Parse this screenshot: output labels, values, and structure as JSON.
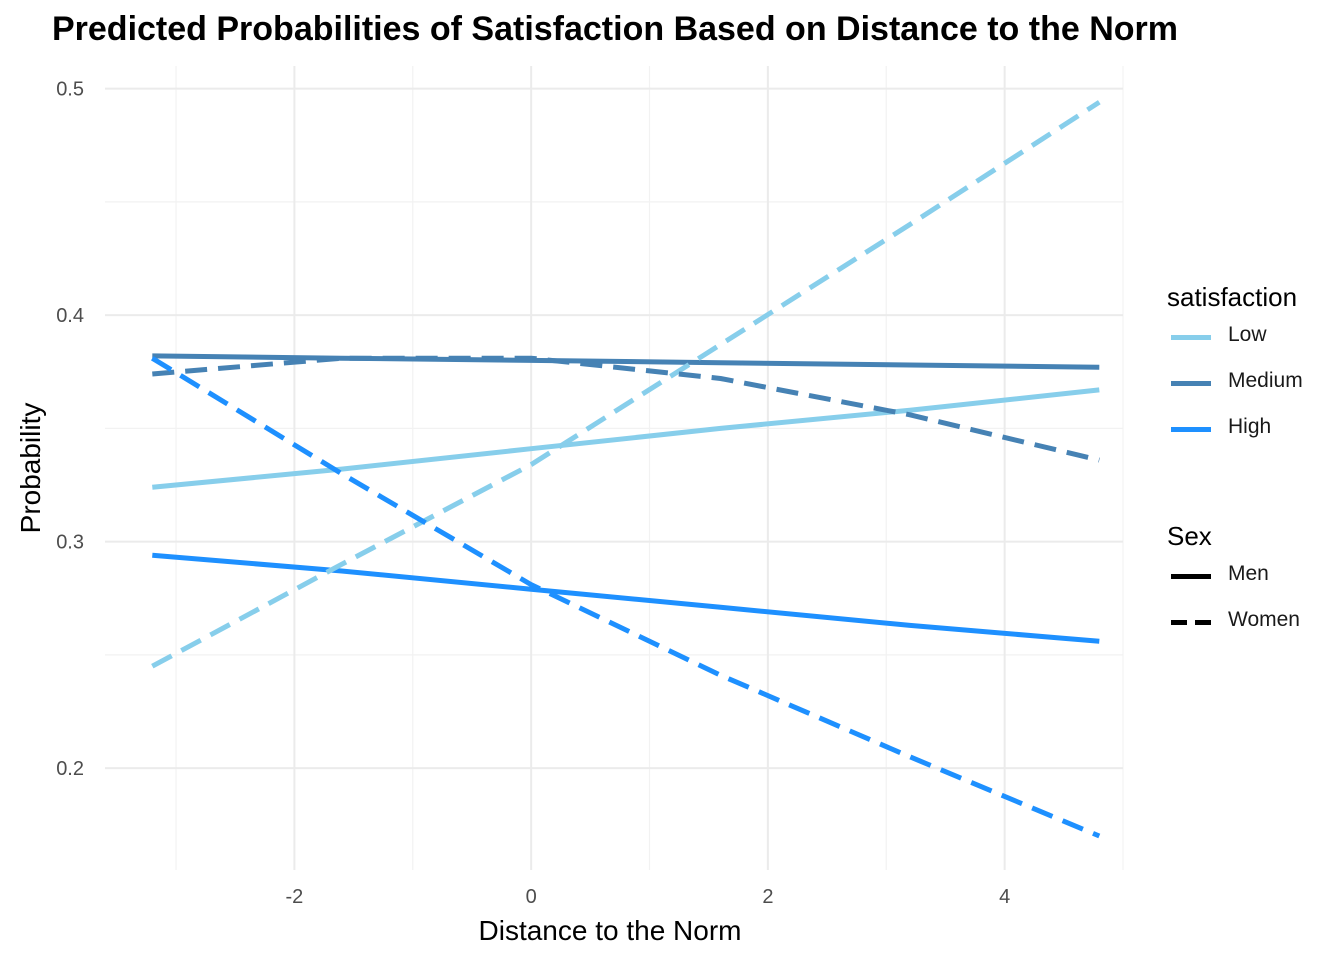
{
  "chart_data": {
    "type": "line",
    "title": "Predicted Probabilities of Satisfaction Based on Distance to the Norm",
    "xlabel": "Distance to the Norm",
    "ylabel": "Probability",
    "xlim": [
      -3.6,
      5.0
    ],
    "ylim": [
      0.155,
      0.51
    ],
    "x_ticks": [
      -2,
      0,
      2,
      4
    ],
    "x_tick_labels": [
      "-2",
      "0",
      "2",
      "4"
    ],
    "y_ticks": [
      0.2,
      0.3,
      0.4,
      0.5
    ],
    "y_tick_labels": [
      "0.2",
      "0.3",
      "0.4",
      "0.5"
    ],
    "grid": true,
    "legend_placement": "right",
    "legends": [
      {
        "title": "satisfaction",
        "items": [
          {
            "label": "Low",
            "color": "#87CEEB"
          },
          {
            "label": "Medium",
            "color": "#4682B4"
          },
          {
            "label": "High",
            "color": "#1E90FF"
          }
        ]
      },
      {
        "title": "Sex",
        "items": [
          {
            "label": "Men",
            "linetype": "solid"
          },
          {
            "label": "Women",
            "linetype": "dashed"
          }
        ]
      }
    ],
    "series": [
      {
        "satisfaction": "Low",
        "sex": "Men",
        "color": "#87CEEB",
        "linetype": "solid",
        "x": [
          -3.2,
          -1.6,
          0,
          1.6,
          3.2,
          4.8
        ],
        "y": [
          0.324,
          0.332,
          0.341,
          0.35,
          0.358,
          0.367
        ]
      },
      {
        "satisfaction": "Medium",
        "sex": "Men",
        "color": "#4682B4",
        "linetype": "solid",
        "x": [
          -3.2,
          -1.6,
          0,
          1.6,
          3.2,
          4.8
        ],
        "y": [
          0.382,
          0.381,
          0.38,
          0.379,
          0.378,
          0.377
        ]
      },
      {
        "satisfaction": "High",
        "sex": "Men",
        "color": "#1E90FF",
        "linetype": "solid",
        "x": [
          -3.2,
          -1.6,
          0,
          1.6,
          3.2,
          4.8
        ],
        "y": [
          0.294,
          0.287,
          0.279,
          0.271,
          0.263,
          0.256
        ]
      },
      {
        "satisfaction": "Low",
        "sex": "Women",
        "color": "#87CEEB",
        "linetype": "dashed",
        "x": [
          -3.2,
          -1.6,
          0,
          1.6,
          3.2,
          4.8
        ],
        "y": [
          0.245,
          0.29,
          0.334,
          0.387,
          0.44,
          0.494
        ]
      },
      {
        "satisfaction": "Medium",
        "sex": "Women",
        "color": "#4682B4",
        "linetype": "dashed",
        "x": [
          -3.2,
          -1.6,
          0,
          1.6,
          3.2,
          4.8
        ],
        "y": [
          0.374,
          0.381,
          0.381,
          0.372,
          0.356,
          0.336
        ]
      },
      {
        "satisfaction": "High",
        "sex": "Women",
        "color": "#1E90FF",
        "linetype": "dashed",
        "x": [
          -3.2,
          -1.6,
          0,
          1.6,
          3.2,
          4.8
        ],
        "y": [
          0.381,
          0.33,
          0.281,
          0.241,
          0.205,
          0.17
        ]
      }
    ]
  }
}
